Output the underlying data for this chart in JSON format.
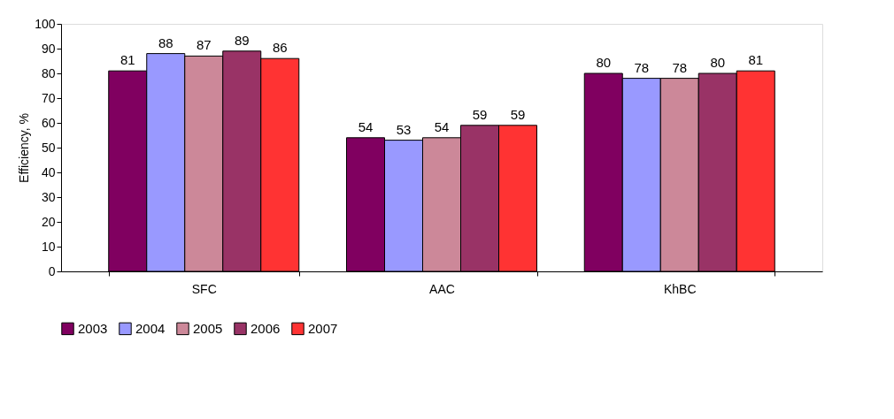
{
  "chart_data": {
    "type": "bar",
    "ylabel": "Efficiency, %",
    "categories": [
      "SFC",
      "AAC",
      "KhBC"
    ],
    "series": [
      {
        "name": "2003",
        "color": "#800060",
        "values": [
          81,
          54,
          80
        ]
      },
      {
        "name": "2004",
        "color": "#9999ff",
        "values": [
          88,
          53,
          78
        ]
      },
      {
        "name": "2005",
        "color": "#cc8899",
        "values": [
          87,
          54,
          78
        ]
      },
      {
        "name": "2006",
        "color": "#993366",
        "values": [
          89,
          59,
          80
        ]
      },
      {
        "name": "2007",
        "color": "#ff3333",
        "values": [
          86,
          59,
          81
        ]
      }
    ],
    "ylim": [
      0,
      100
    ],
    "yticks": [
      0,
      10,
      20,
      30,
      40,
      50,
      60,
      70,
      80,
      90,
      100
    ],
    "grid": false,
    "legend": "bottom",
    "data_labels": true
  }
}
